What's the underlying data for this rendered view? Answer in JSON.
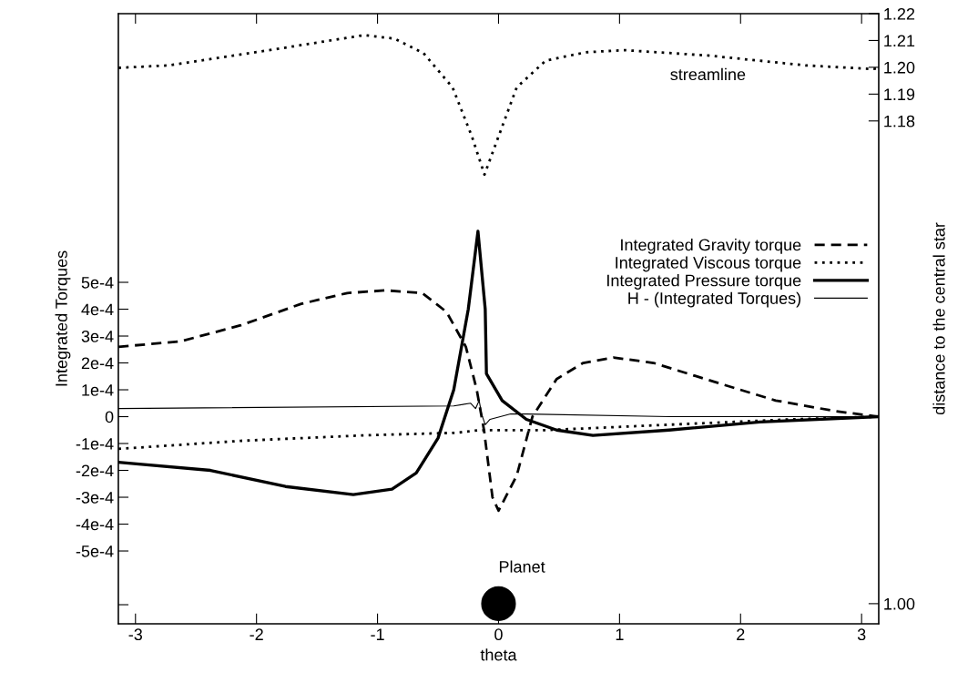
{
  "chart_data": {
    "type": "line",
    "xlabel": "theta",
    "ylabel": "Integrated Torques",
    "y2label": "distance to the central star",
    "xlim": [
      -3.1416,
      3.1416
    ],
    "xticks": [
      -3,
      -2,
      -1,
      0,
      1,
      2,
      3
    ],
    "ylim": [
      -0.000771,
      0.0015
    ],
    "yticks": [
      {
        "value": -0.0007,
        "label": null
      },
      {
        "value": -0.0005,
        "label": "-5e-4"
      },
      {
        "value": -0.0004,
        "label": "-4e-4"
      },
      {
        "value": -0.0003,
        "label": "-3e-4"
      },
      {
        "value": -0.0002,
        "label": "-2e-4"
      },
      {
        "value": -0.0001,
        "label": "-1e-4"
      },
      {
        "value": 0,
        "label": "0"
      },
      {
        "value": 0.0001,
        "label": "1e-4"
      },
      {
        "value": 0.0002,
        "label": "2e-4"
      },
      {
        "value": 0.0003,
        "label": "3e-4"
      },
      {
        "value": 0.0004,
        "label": "4e-4"
      },
      {
        "value": 0.0005,
        "label": "5e-4"
      }
    ],
    "y2lim": [
      0.9925,
      1.22
    ],
    "y2ticks": [
      {
        "value": 1.0,
        "label": "1.00"
      },
      {
        "value": 1.18,
        "label": "1.18"
      },
      {
        "value": 1.19,
        "label": "1.19"
      },
      {
        "value": 1.2,
        "label": "1.20"
      },
      {
        "value": 1.21,
        "label": "1.21"
      },
      {
        "value": 1.22,
        "label": "1.22"
      }
    ],
    "legend": "right",
    "grid": false,
    "series": [
      {
        "name": "Integrated Gravity torque",
        "color": "#000000",
        "line_style": "dashed",
        "x": [
          -3.14,
          -2.63,
          -2.13,
          -1.63,
          -1.25,
          -0.93,
          -0.63,
          -0.43,
          -0.27,
          -0.18,
          -0.12,
          -0.05,
          0.0,
          0.15,
          0.28,
          0.48,
          0.7,
          0.95,
          1.28,
          1.78,
          2.29,
          2.79,
          3.14
        ],
        "values": [
          0.00026,
          0.00028,
          0.00034,
          0.00042,
          0.00046,
          0.00047,
          0.00046,
          0.00039,
          0.00026,
          0.0001,
          -5e-05,
          -0.0003,
          -0.00035,
          -0.00022,
          0.0,
          0.00014,
          0.0002,
          0.00022,
          0.0002,
          0.00013,
          6e-05,
          2e-05,
          0.0
        ]
      },
      {
        "name": "Integrated Viscous torque",
        "color": "#000000",
        "line_style": "dotted",
        "x": [
          -3.14,
          -2.13,
          -1.14,
          -0.35,
          -0.15,
          0.4,
          1.41,
          2.41,
          3.14
        ],
        "values": [
          -0.00012,
          -9e-05,
          -7e-05,
          -6e-05,
          -5e-05,
          -5e-05,
          -3e-05,
          -1e-05,
          0.0
        ]
      },
      {
        "name": "Integrated Pressure torque",
        "color": "#000000",
        "line_style": "solid",
        "x": [
          -3.14,
          -2.38,
          -1.76,
          -1.2,
          -0.88,
          -0.68,
          -0.5,
          -0.37,
          -0.25,
          -0.17,
          -0.11,
          -0.1,
          0.03,
          0.23,
          0.48,
          0.78,
          1.41,
          2.16,
          3.14
        ],
        "values": [
          -0.00017,
          -0.0002,
          -0.00026,
          -0.00029,
          -0.00027,
          -0.00021,
          -8e-05,
          0.0001,
          0.0004,
          0.00069,
          0.0004,
          0.00016,
          6e-05,
          -1e-05,
          -5e-05,
          -7e-05,
          -5e-05,
          -2e-05,
          0.0
        ]
      },
      {
        "name": "H - (Integrated Torques)",
        "color": "#000000",
        "line_style": "solid",
        "x": [
          -3.14,
          -0.37,
          -0.23,
          -0.19,
          -0.16,
          -0.14,
          -0.11,
          -0.07,
          0.1,
          0.23,
          1.41,
          3.14
        ],
        "values": [
          3e-05,
          4e-05,
          5e-05,
          3e-05,
          6e-05,
          1e-05,
          -3e-05,
          -1e-05,
          1e-05,
          1e-05,
          0.0,
          0.0
        ]
      },
      {
        "name": "streamline",
        "color": "#000000",
        "line_style": "dotted",
        "axis": "y2",
        "x": [
          -3.14,
          -2.73,
          -1.92,
          -1.11,
          -0.86,
          -0.62,
          -0.38,
          -0.22,
          -0.116,
          -0.014,
          0.15,
          0.39,
          0.72,
          1.04,
          1.73,
          2.54,
          3.07,
          3.14
        ],
        "values": [
          1.1998,
          1.2007,
          1.2062,
          1.212,
          1.2107,
          1.2053,
          1.1925,
          1.1742,
          1.16,
          1.1725,
          1.1925,
          1.2025,
          1.2056,
          1.2064,
          1.2044,
          1.2007,
          1.1994,
          1.1995
        ]
      },
      {
        "name": "Planet",
        "type": "scatter",
        "color": "#000000",
        "marker": "circle",
        "axis": "y2",
        "x": [
          0
        ],
        "values": [
          1.0
        ]
      }
    ]
  }
}
